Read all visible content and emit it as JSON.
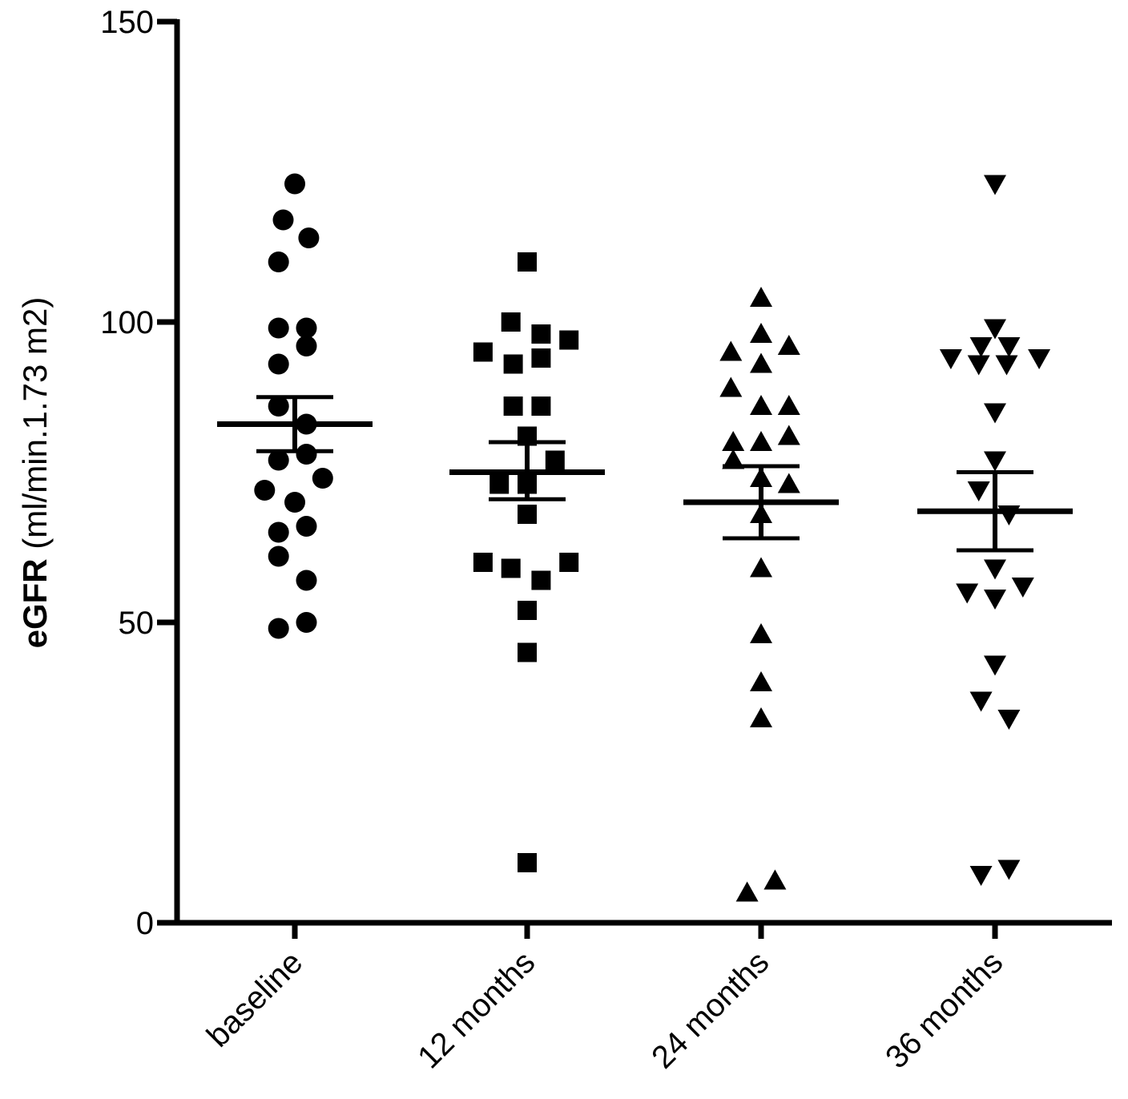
{
  "chart_data": {
    "type": "scatter",
    "title": "",
    "xlabel": "",
    "ylabel_bold": "eGFR",
    "ylabel_rest": " (ml/min.1.73 m2)",
    "ylim": [
      0,
      150
    ],
    "yticks": [
      0,
      50,
      100,
      150
    ],
    "yticklabels": [
      "0",
      "50",
      "100",
      "150"
    ],
    "categories": [
      "baseline",
      "12 months",
      "24 months",
      "36 months"
    ],
    "color": "#000000",
    "series": [
      {
        "name": "baseline",
        "marker": "circle",
        "mean": 83,
        "sem_low": 78.5,
        "sem_high": 87.5,
        "points": [
          {
            "offset": 0,
            "value": 123
          },
          {
            "offset": -0.05,
            "value": 117
          },
          {
            "offset": 0.06,
            "value": 114
          },
          {
            "offset": -0.07,
            "value": 110
          },
          {
            "offset": -0.07,
            "value": 99
          },
          {
            "offset": 0.05,
            "value": 99
          },
          {
            "offset": 0.05,
            "value": 96
          },
          {
            "offset": -0.07,
            "value": 93
          },
          {
            "offset": -0.07,
            "value": 86
          },
          {
            "offset": 0.05,
            "value": 83
          },
          {
            "offset": 0.05,
            "value": 78
          },
          {
            "offset": -0.07,
            "value": 77
          },
          {
            "offset": 0.12,
            "value": 74
          },
          {
            "offset": -0.13,
            "value": 72
          },
          {
            "offset": 0,
            "value": 70
          },
          {
            "offset": -0.07,
            "value": 65
          },
          {
            "offset": 0.05,
            "value": 66
          },
          {
            "offset": -0.07,
            "value": 61
          },
          {
            "offset": 0.05,
            "value": 57
          },
          {
            "offset": 0.05,
            "value": 50
          },
          {
            "offset": -0.07,
            "value": 49
          }
        ]
      },
      {
        "name": "12 months",
        "marker": "square",
        "mean": 75,
        "sem_low": 70.5,
        "sem_high": 80,
        "points": [
          {
            "offset": 0,
            "value": 110
          },
          {
            "offset": -0.07,
            "value": 100
          },
          {
            "offset": 0.06,
            "value": 98
          },
          {
            "offset": 0.18,
            "value": 97
          },
          {
            "offset": -0.19,
            "value": 95
          },
          {
            "offset": 0.06,
            "value": 94
          },
          {
            "offset": -0.06,
            "value": 93
          },
          {
            "offset": -0.06,
            "value": 86
          },
          {
            "offset": 0.06,
            "value": 86
          },
          {
            "offset": 0,
            "value": 81
          },
          {
            "offset": 0.12,
            "value": 77
          },
          {
            "offset": -0.12,
            "value": 73
          },
          {
            "offset": 0,
            "value": 73
          },
          {
            "offset": 0,
            "value": 68
          },
          {
            "offset": -0.19,
            "value": 60
          },
          {
            "offset": 0.18,
            "value": 60
          },
          {
            "offset": -0.07,
            "value": 59
          },
          {
            "offset": 0.06,
            "value": 57
          },
          {
            "offset": 0,
            "value": 52
          },
          {
            "offset": 0,
            "value": 45
          },
          {
            "offset": 0,
            "value": 10
          }
        ]
      },
      {
        "name": "24 months",
        "marker": "triangle-up",
        "mean": 70,
        "sem_low": 64,
        "sem_high": 76,
        "points": [
          {
            "offset": 0,
            "value": 104
          },
          {
            "offset": 0,
            "value": 98
          },
          {
            "offset": 0.12,
            "value": 96
          },
          {
            "offset": -0.13,
            "value": 95
          },
          {
            "offset": 0,
            "value": 93
          },
          {
            "offset": -0.13,
            "value": 89
          },
          {
            "offset": 0,
            "value": 86
          },
          {
            "offset": 0.12,
            "value": 86
          },
          {
            "offset": -0.12,
            "value": 80
          },
          {
            "offset": 0,
            "value": 80
          },
          {
            "offset": 0.12,
            "value": 81
          },
          {
            "offset": -0.12,
            "value": 77
          },
          {
            "offset": 0,
            "value": 74
          },
          {
            "offset": 0.12,
            "value": 73
          },
          {
            "offset": 0,
            "value": 68
          },
          {
            "offset": 0,
            "value": 59
          },
          {
            "offset": 0,
            "value": 48
          },
          {
            "offset": 0,
            "value": 40
          },
          {
            "offset": 0,
            "value": 34
          },
          {
            "offset": 0.06,
            "value": 7
          },
          {
            "offset": -0.06,
            "value": 5
          }
        ]
      },
      {
        "name": "36 months",
        "marker": "triangle-down",
        "mean": 68.5,
        "sem_low": 62,
        "sem_high": 75,
        "points": [
          {
            "offset": 0,
            "value": 123
          },
          {
            "offset": 0,
            "value": 99
          },
          {
            "offset": -0.06,
            "value": 96
          },
          {
            "offset": 0.06,
            "value": 96
          },
          {
            "offset": -0.19,
            "value": 94
          },
          {
            "offset": 0.19,
            "value": 94
          },
          {
            "offset": -0.07,
            "value": 93
          },
          {
            "offset": 0.05,
            "value": 93
          },
          {
            "offset": 0,
            "value": 85
          },
          {
            "offset": 0,
            "value": 77
          },
          {
            "offset": -0.07,
            "value": 72
          },
          {
            "offset": 0.06,
            "value": 68
          },
          {
            "offset": 0,
            "value": 59
          },
          {
            "offset": -0.12,
            "value": 55
          },
          {
            "offset": 0.12,
            "value": 56
          },
          {
            "offset": 0,
            "value": 54
          },
          {
            "offset": 0,
            "value": 43
          },
          {
            "offset": -0.06,
            "value": 37
          },
          {
            "offset": 0.06,
            "value": 34
          },
          {
            "offset": -0.06,
            "value": 8
          },
          {
            "offset": 0.06,
            "value": 9
          }
        ]
      }
    ]
  }
}
